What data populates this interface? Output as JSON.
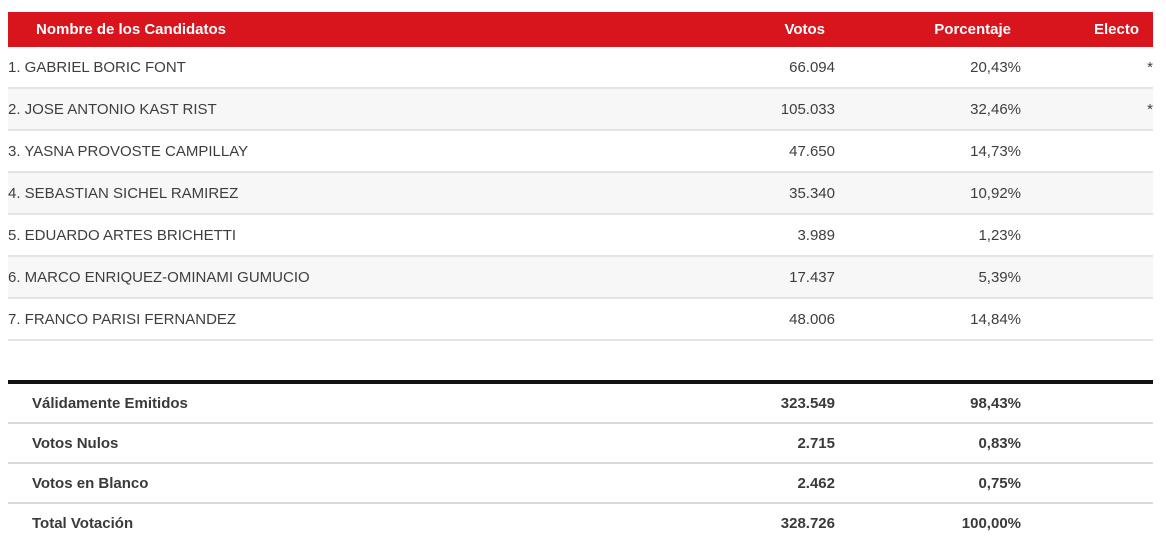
{
  "colors": {
    "header_bg": "#d8141d",
    "header_text": "#ffffff",
    "row_stripe": "#f7f7f7",
    "row_border": "#e4e4e4",
    "summary_top_border": "#131313",
    "body_text": "#3e3e3e"
  },
  "candidates_table": {
    "headers": {
      "name": "Nombre de los Candidatos",
      "votes": "Votos",
      "pct": "Porcentaje",
      "electo": "Electo"
    },
    "rows": [
      {
        "name": "1. GABRIEL BORIC FONT",
        "votes": "66.094",
        "pct": "20,43%",
        "electo": "*"
      },
      {
        "name": "2. JOSE ANTONIO KAST RIST",
        "votes": "105.033",
        "pct": "32,46%",
        "electo": "*"
      },
      {
        "name": "3. YASNA PROVOSTE CAMPILLAY",
        "votes": "47.650",
        "pct": "14,73%",
        "electo": ""
      },
      {
        "name": "4. SEBASTIAN SICHEL RAMIREZ",
        "votes": "35.340",
        "pct": "10,92%",
        "electo": ""
      },
      {
        "name": "5. EDUARDO ARTES BRICHETTI",
        "votes": "3.989",
        "pct": "1,23%",
        "electo": ""
      },
      {
        "name": "6. MARCO ENRIQUEZ-OMINAMI GUMUCIO",
        "votes": "17.437",
        "pct": "5,39%",
        "electo": ""
      },
      {
        "name": "7. FRANCO PARISI FERNANDEZ",
        "votes": "48.006",
        "pct": "14,84%",
        "electo": ""
      }
    ]
  },
  "summary_table": {
    "rows": [
      {
        "label": "Válidamente Emitidos",
        "votes": "323.549",
        "pct": "98,43%",
        "electo": ""
      },
      {
        "label": "Votos Nulos",
        "votes": "2.715",
        "pct": "0,83%",
        "electo": ""
      },
      {
        "label": "Votos en Blanco",
        "votes": "2.462",
        "pct": "0,75%",
        "electo": ""
      },
      {
        "label": "Total Votación",
        "votes": "328.726",
        "pct": "100,00%",
        "electo": ""
      }
    ]
  }
}
